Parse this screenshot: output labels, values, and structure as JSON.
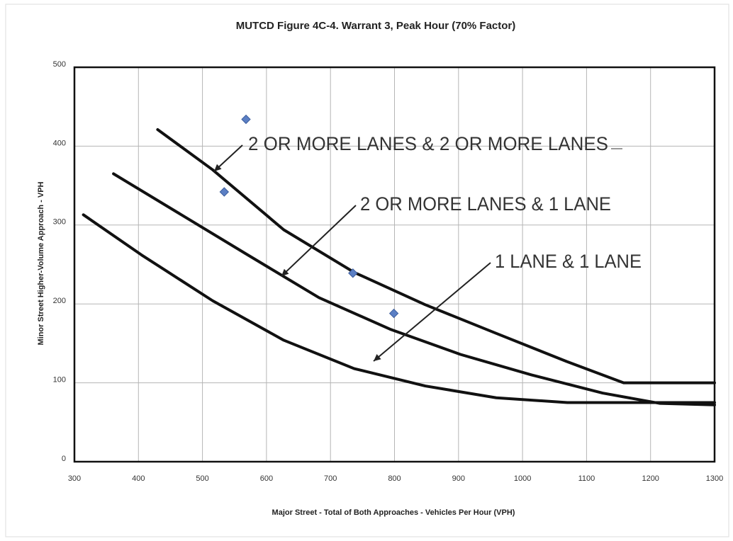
{
  "chart_data": {
    "type": "line",
    "title": "MUTCD Figure 4C-4. Warrant 3, Peak Hour (70% Factor)",
    "x_label": "Major Street - Total of Both Approaches - Vehicles Per Hour (VPH)",
    "y_label": "Minor Street Higher-Volume Approach - VPH",
    "xlim": [
      300,
      1300
    ],
    "ylim": [
      0,
      500
    ],
    "xticks": [
      300,
      400,
      500,
      600,
      700,
      800,
      900,
      1000,
      1100,
      1200,
      1300
    ],
    "yticks": [
      0,
      100,
      200,
      300,
      400,
      500
    ],
    "grid": true,
    "series": [
      {
        "name": "2 OR MORE LANES & 2 OR MORE LANES",
        "color": "#111111",
        "x": [
          430,
          516,
          627,
          737,
          848,
          958,
          1069,
          1158,
          1300
        ],
        "values": [
          421,
          370,
          294,
          240,
          199,
          163,
          127,
          100,
          100
        ]
      },
      {
        "name": "2 OR MORE LANES & 1 LANE",
        "color": "#111111",
        "x": [
          361,
          461,
          571,
          682,
          793,
          903,
          1014,
          1125,
          1214,
          1300
        ],
        "values": [
          365,
          316,
          262,
          208,
          168,
          136,
          110,
          87,
          74,
          72
        ]
      },
      {
        "name": "1 LANE & 1 LANE",
        "color": "#111111",
        "x": [
          314,
          405,
          516,
          627,
          737,
          848,
          959,
          1070,
          1300
        ],
        "values": [
          313,
          262,
          204,
          154,
          118,
          96,
          81,
          75,
          75
        ]
      }
    ],
    "points": {
      "color": "#5b7fc4",
      "x": [
        568,
        534,
        735,
        799
      ],
      "values": [
        434,
        342,
        239,
        188
      ]
    }
  }
}
